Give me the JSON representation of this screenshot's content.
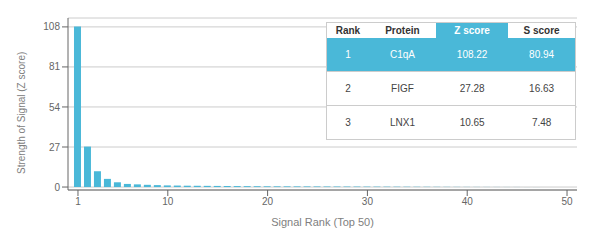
{
  "chart_data": {
    "type": "bar",
    "xlabel": "Signal Rank (Top 50)",
    "ylabel": "Strength of Signal (Z score)",
    "x": [
      1,
      2,
      3,
      4,
      5,
      6,
      7,
      8,
      9,
      10,
      11,
      12,
      13,
      14,
      15,
      16,
      17,
      18,
      19,
      20,
      21,
      22,
      23,
      24,
      25,
      26,
      27,
      28,
      29,
      30,
      31,
      32,
      33,
      34,
      35,
      36,
      37,
      38,
      39,
      40,
      41,
      42,
      43,
      44,
      45,
      46,
      47,
      48,
      49,
      50
    ],
    "values": [
      108.22,
      27.28,
      10.65,
      5.5,
      3.2,
      2.1,
      1.8,
      1.5,
      1.3,
      1.1,
      1.0,
      0.9,
      0.85,
      0.8,
      0.75,
      0.7,
      0.65,
      0.6,
      0.55,
      0.5,
      0.48,
      0.46,
      0.44,
      0.42,
      0.4,
      0.38,
      0.36,
      0.34,
      0.32,
      0.3,
      0.28,
      0.26,
      0.24,
      0.22,
      0.2,
      0.18,
      0.16,
      0.14,
      0.12,
      0.1,
      0.09,
      0.08,
      0.07,
      0.06,
      0.05,
      0.04,
      0.03,
      0.02,
      0.01,
      0.005
    ],
    "color": "#4ab8d8",
    "xlim": [
      0,
      51
    ],
    "xticks": [
      1,
      10,
      20,
      30,
      40,
      50
    ],
    "ylim": [
      -2,
      114
    ],
    "yticks": [
      0,
      27,
      54,
      81,
      108
    ],
    "grid": true,
    "table": {
      "headers": [
        "Rank",
        "Protein",
        "Z score",
        "S score"
      ],
      "rows": [
        [
          "1",
          "C1qA",
          "108.22",
          "80.94"
        ],
        [
          "2",
          "FIGF",
          "27.28",
          "16.63"
        ],
        [
          "3",
          "LNX1",
          "10.65",
          "7.48"
        ]
      ]
    }
  }
}
